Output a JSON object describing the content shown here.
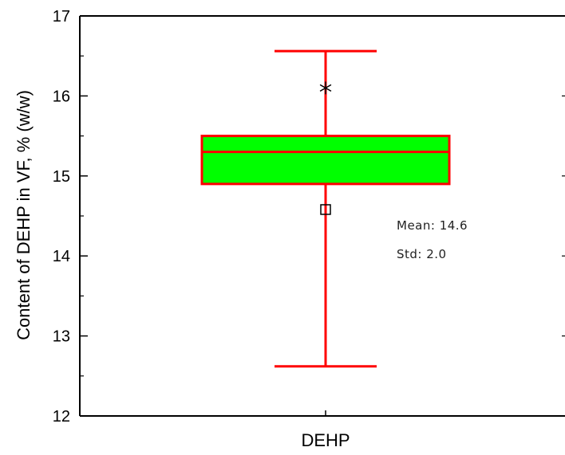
{
  "chart_data": {
    "type": "box",
    "categories": [
      "DEHP"
    ],
    "ylabel": "Content of DEHP  in VF, % (w/w)",
    "ylim": [
      12,
      17
    ],
    "yticks": [
      "12",
      "13",
      "14",
      "15",
      "16",
      "17"
    ],
    "box": {
      "whisker_low": 12.62,
      "q1": 14.9,
      "median": 15.3,
      "q3": 15.5,
      "whisker_high": 16.56,
      "mean": 14.58,
      "outlier": 16.1
    },
    "annotations": {
      "mean": "Mean: 14.6",
      "std": "Std: 2.0"
    },
    "colors": {
      "box_fill": "#00ff00",
      "box_stroke": "#ff0000",
      "axis": "#000000"
    }
  }
}
